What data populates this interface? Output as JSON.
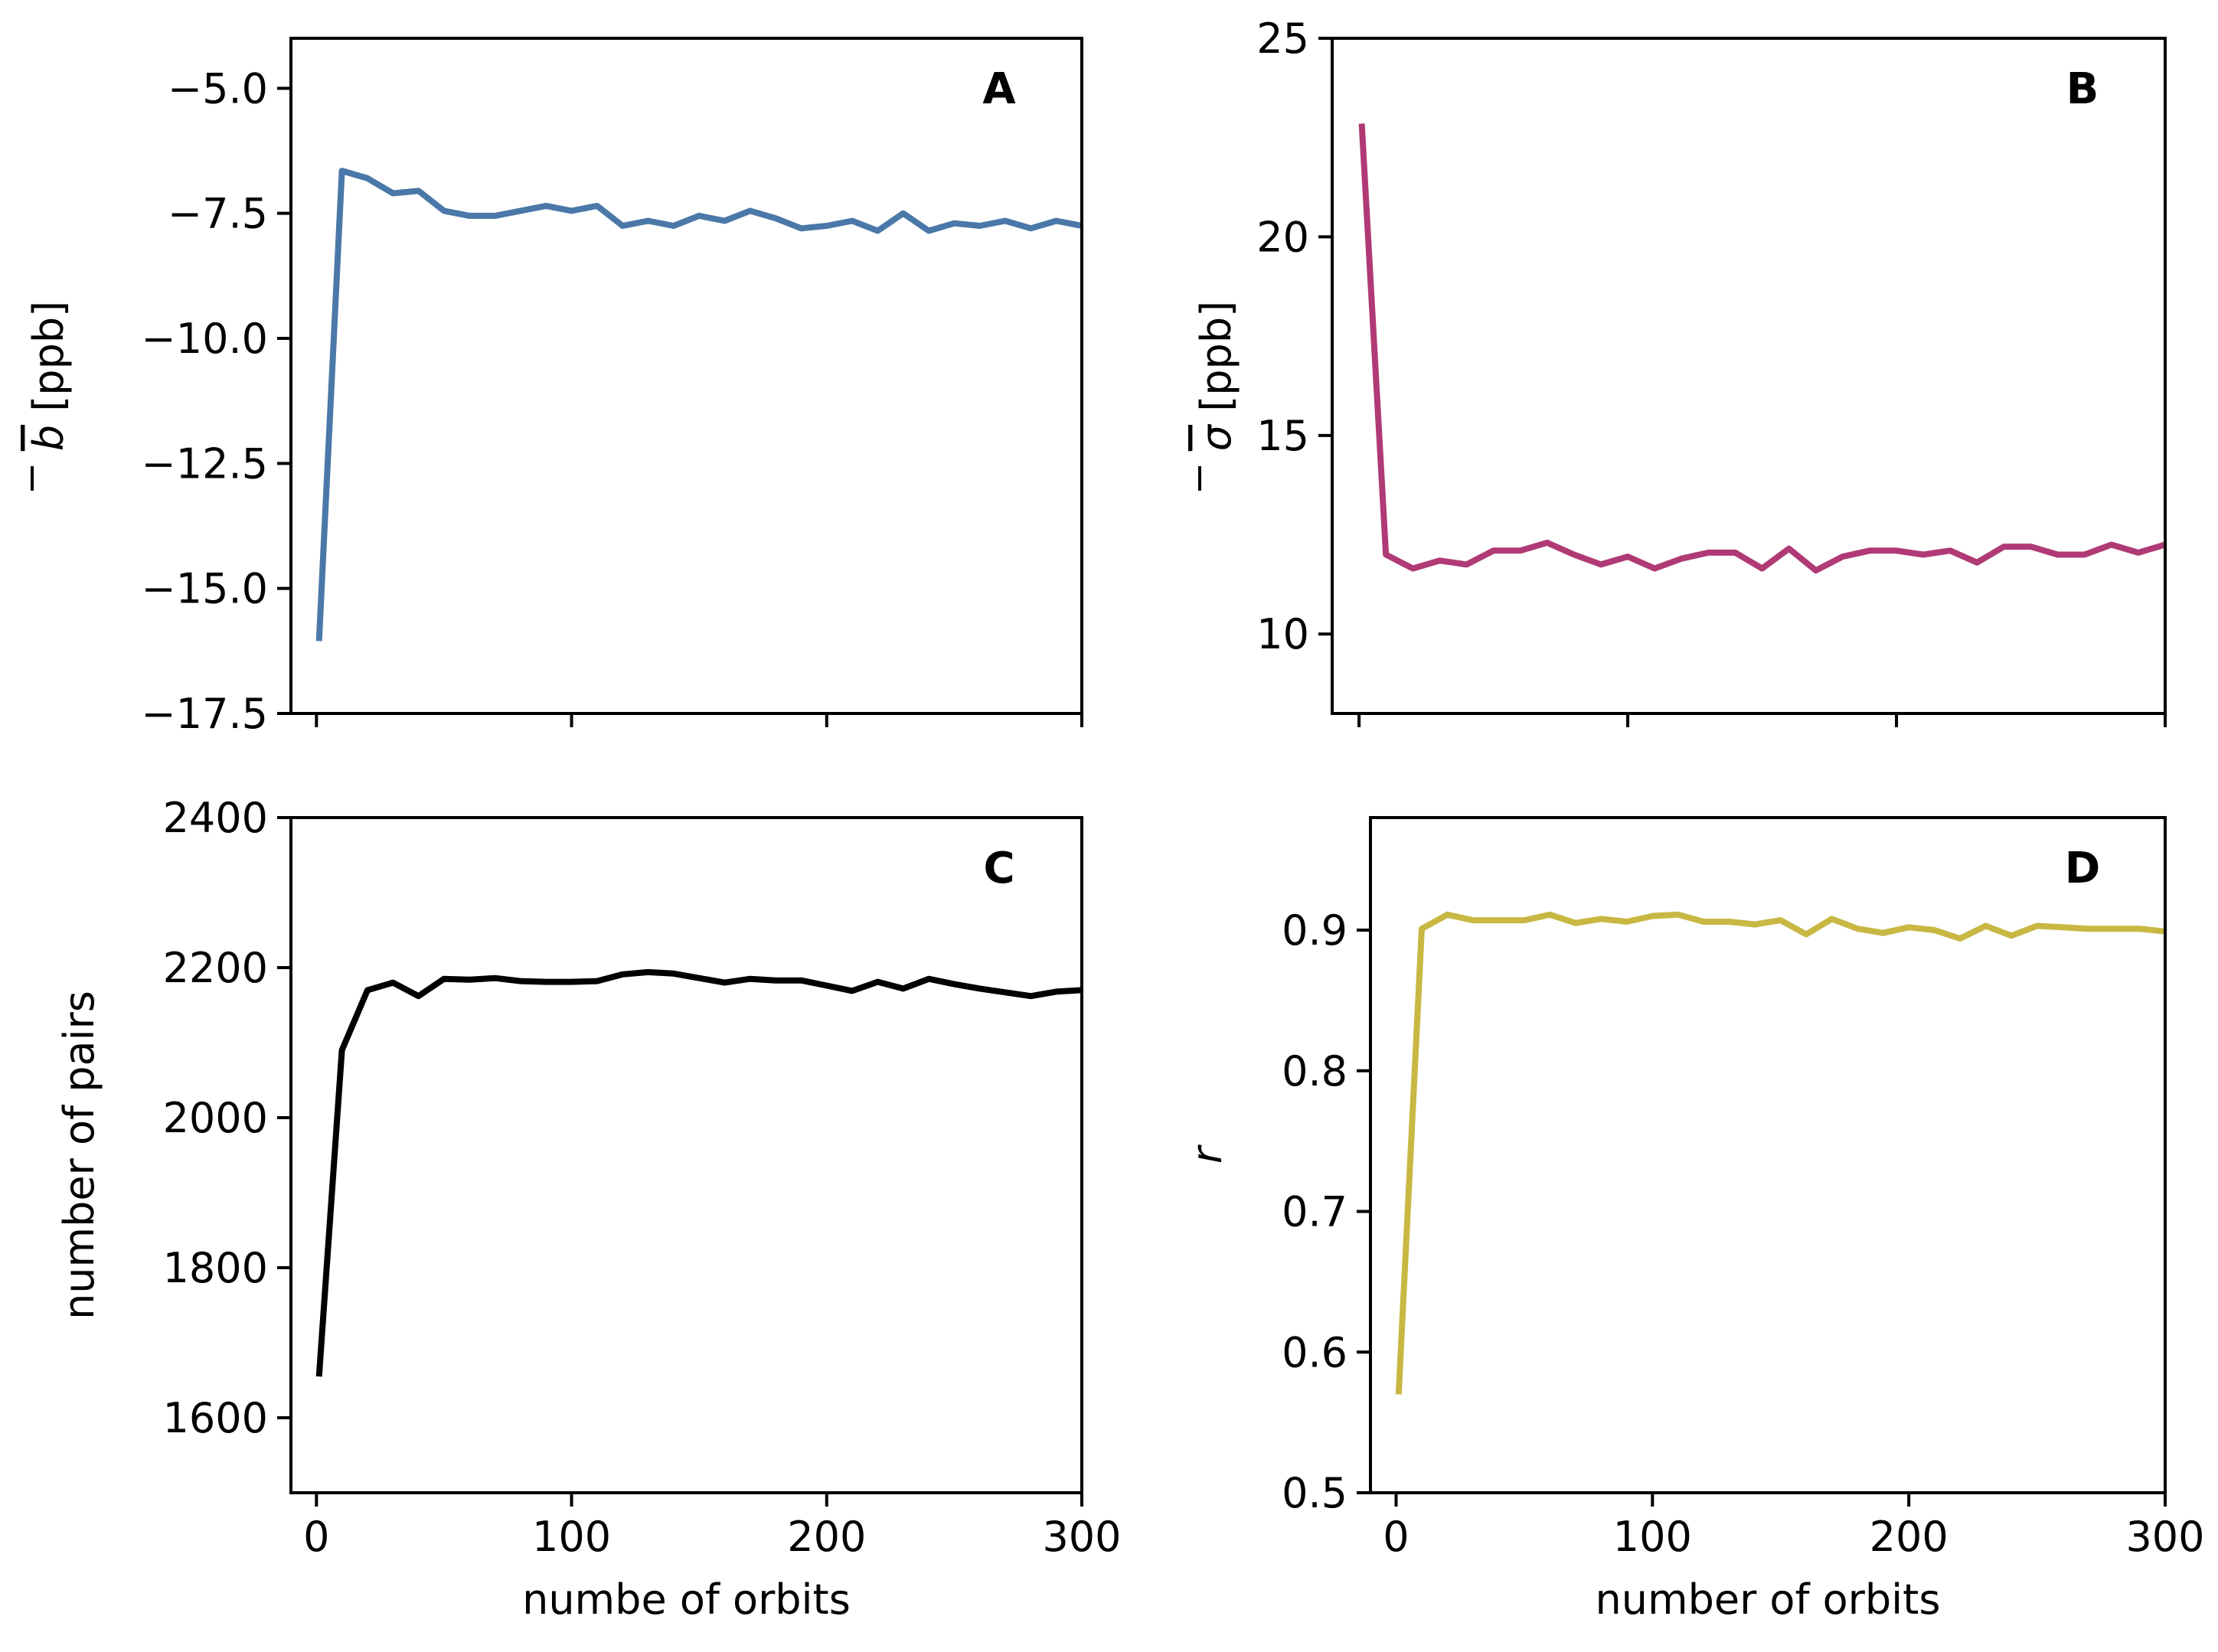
{
  "chart_data": [
    {
      "panel": "A",
      "type": "line",
      "color": "#4a78a8",
      "ylabel_symbol": "b",
      "ylabel_unit": "[ppb]",
      "xlabel": "",
      "xlim": [
        -10,
        300
      ],
      "ylim": [
        -17.5,
        -4.0
      ],
      "xticks": [
        0,
        100,
        200,
        300
      ],
      "yticks": [
        -17.5,
        -15.0,
        -12.5,
        -10.0,
        -7.5,
        -5.0
      ],
      "ytick_labels": [
        "−17.5",
        "−15.0",
        "−12.5",
        "−10.0",
        "−7.5",
        "−5.0"
      ],
      "show_xtick_labels": false,
      "x": [
        1,
        10,
        20,
        30,
        40,
        50,
        60,
        70,
        80,
        90,
        100,
        110,
        120,
        130,
        140,
        150,
        160,
        170,
        180,
        190,
        200,
        210,
        220,
        230,
        240,
        250,
        260,
        270,
        280,
        290,
        300
      ],
      "y": [
        -16.05,
        -6.65,
        -6.8,
        -7.1,
        -7.05,
        -7.45,
        -7.55,
        -7.55,
        -7.45,
        -7.35,
        -7.45,
        -7.35,
        -7.75,
        -7.65,
        -7.75,
        -7.55,
        -7.65,
        -7.45,
        -7.6,
        -7.8,
        -7.75,
        -7.65,
        -7.85,
        -7.5,
        -7.85,
        -7.7,
        -7.75,
        -7.65,
        -7.8,
        -7.65,
        -7.75
      ]
    },
    {
      "panel": "B",
      "type": "line",
      "color": "#b03a75",
      "ylabel_symbol": "σ",
      "ylabel_unit": "[ppb]",
      "xlabel": "",
      "xlim": [
        -10,
        300
      ],
      "ylim": [
        8.0,
        25.0
      ],
      "xticks": [
        0,
        100,
        200,
        300
      ],
      "yticks": [
        10,
        15,
        20,
        25
      ],
      "ytick_labels": [
        "10",
        "15",
        "20",
        "25"
      ],
      "show_xtick_labels": false,
      "x": [
        1,
        10,
        20,
        30,
        40,
        50,
        60,
        70,
        80,
        90,
        100,
        110,
        120,
        130,
        140,
        150,
        160,
        170,
        180,
        190,
        200,
        210,
        220,
        230,
        240,
        250,
        260,
        270,
        280,
        290,
        300
      ],
      "y": [
        22.85,
        12.0,
        11.65,
        11.85,
        11.75,
        12.1,
        12.1,
        12.3,
        12.0,
        11.75,
        11.95,
        11.65,
        11.9,
        12.05,
        12.05,
        11.65,
        12.15,
        11.6,
        11.95,
        12.1,
        12.1,
        12.0,
        12.1,
        11.8,
        12.2,
        12.2,
        12.0,
        12.0,
        12.25,
        12.05,
        12.25
      ]
    },
    {
      "panel": "C",
      "type": "line",
      "color": "#000000",
      "ylabel": "number of pairs",
      "xlabel": "numbe of orbits",
      "xlim": [
        -10,
        300
      ],
      "ylim": [
        1500,
        2400
      ],
      "xticks": [
        0,
        100,
        200,
        300
      ],
      "xtick_labels": [
        "0",
        "100",
        "200",
        "300"
      ],
      "yticks": [
        1600,
        1800,
        2000,
        2200,
        2400
      ],
      "ytick_labels": [
        "1600",
        "1800",
        "2000",
        "2200",
        "2400"
      ],
      "show_xtick_labels": true,
      "x": [
        1,
        10,
        20,
        30,
        40,
        50,
        60,
        70,
        80,
        90,
        100,
        110,
        120,
        130,
        140,
        150,
        160,
        170,
        180,
        190,
        200,
        210,
        220,
        230,
        240,
        250,
        260,
        270,
        280,
        290,
        300
      ],
      "y": [
        1655,
        2090,
        2170,
        2180,
        2162,
        2185,
        2184,
        2186,
        2182,
        2181,
        2181,
        2182,
        2191,
        2194,
        2192,
        2186,
        2180,
        2185,
        2183,
        2183,
        2176,
        2169,
        2181,
        2172,
        2185,
        2178,
        2172,
        2167,
        2162,
        2168,
        2170
      ]
    },
    {
      "panel": "D",
      "type": "line",
      "color": "#c8b843",
      "ylabel": "r",
      "xlabel": "number of orbits",
      "xlim": [
        -10,
        300
      ],
      "ylim": [
        0.5,
        0.98
      ],
      "xticks": [
        0,
        100,
        200,
        300
      ],
      "xtick_labels": [
        "0",
        "100",
        "200",
        "300"
      ],
      "yticks": [
        0.5,
        0.6,
        0.7,
        0.8,
        0.9
      ],
      "ytick_labels": [
        "0.5",
        "0.6",
        "0.7",
        "0.8",
        "0.9"
      ],
      "show_xtick_labels": true,
      "x": [
        1,
        10,
        20,
        30,
        40,
        50,
        60,
        70,
        80,
        90,
        100,
        110,
        120,
        130,
        140,
        150,
        160,
        170,
        180,
        190,
        200,
        210,
        220,
        230,
        240,
        250,
        260,
        270,
        280,
        290,
        300
      ],
      "y": [
        0.57,
        0.901,
        0.911,
        0.907,
        0.907,
        0.907,
        0.911,
        0.905,
        0.908,
        0.906,
        0.91,
        0.911,
        0.906,
        0.906,
        0.904,
        0.907,
        0.897,
        0.908,
        0.901,
        0.898,
        0.902,
        0.9,
        0.894,
        0.903,
        0.896,
        0.903,
        0.902,
        0.901,
        0.901,
        0.901,
        0.899
      ]
    }
  ]
}
